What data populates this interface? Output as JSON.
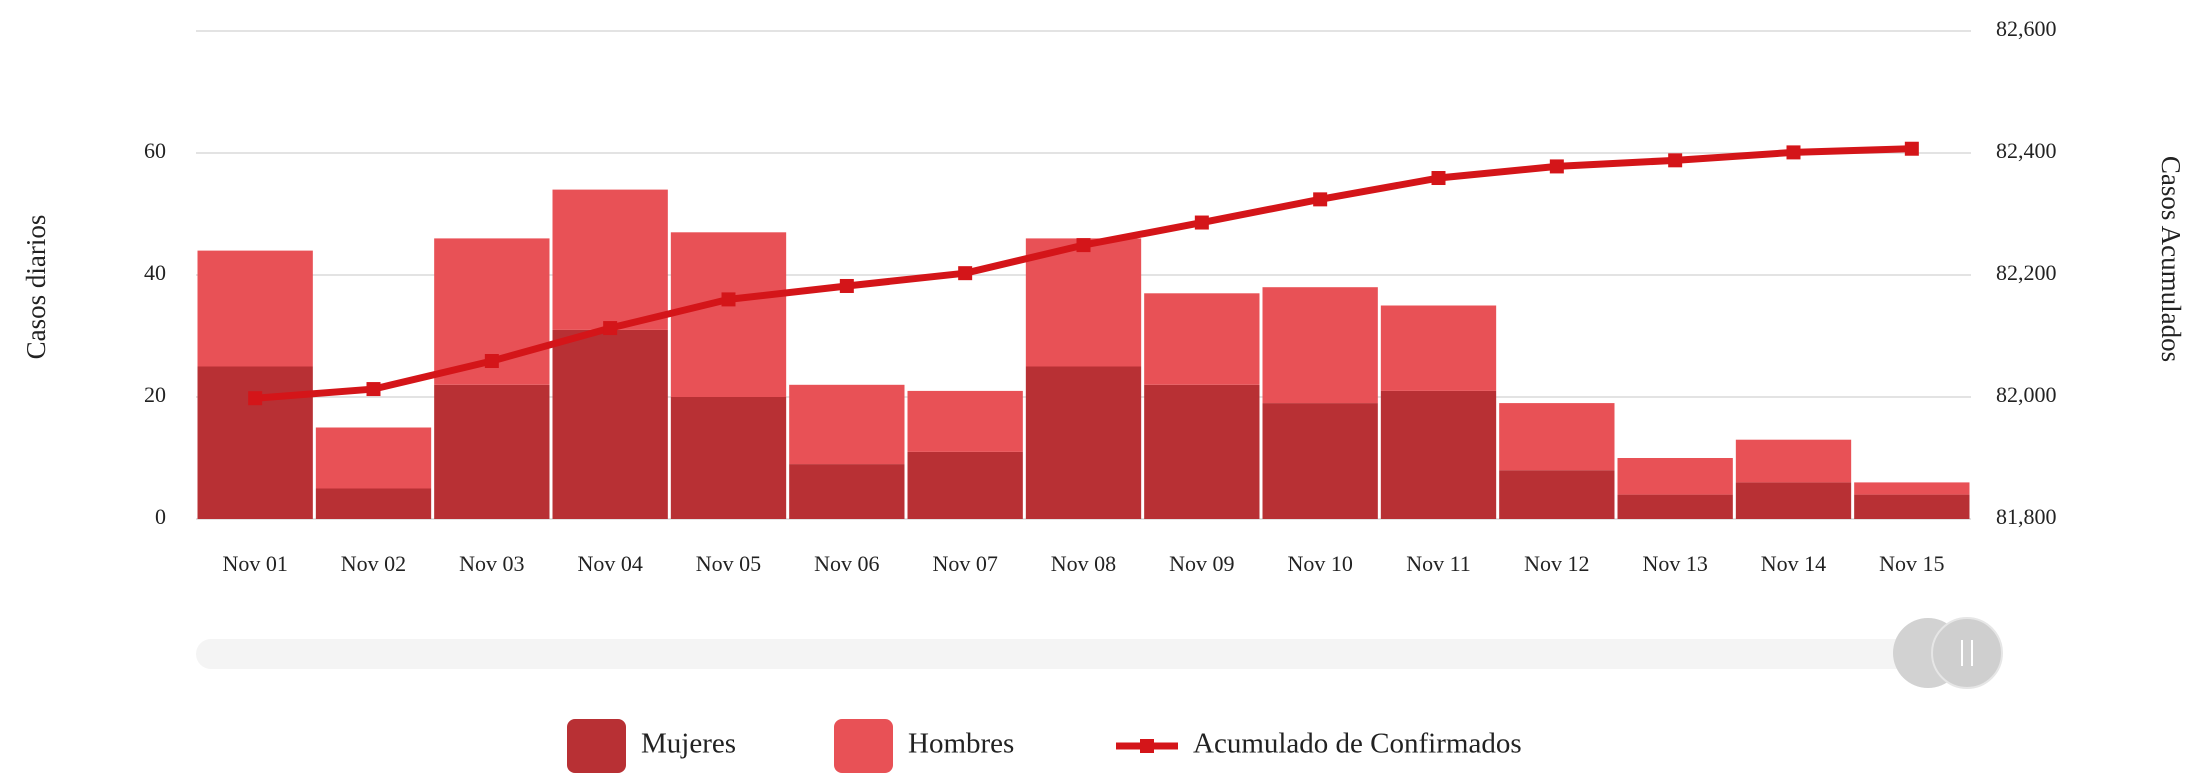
{
  "chart_data": {
    "type": "bar_line",
    "categories": [
      "Nov 01",
      "Nov 02",
      "Nov 03",
      "Nov 04",
      "Nov 05",
      "Nov 06",
      "Nov 07",
      "Nov 08",
      "Nov 09",
      "Nov 10",
      "Nov 11",
      "Nov 12",
      "Nov 13",
      "Nov 14",
      "Nov 15"
    ],
    "series": [
      {
        "name": "Mujeres",
        "type": "bar",
        "color": "#b83034",
        "values": [
          25,
          5,
          22,
          31,
          20,
          9,
          11,
          25,
          22,
          19,
          21,
          8,
          4,
          6,
          4
        ]
      },
      {
        "name": "Hombres",
        "type": "bar",
        "color": "#e85156",
        "values": [
          19,
          10,
          24,
          23,
          27,
          13,
          10,
          21,
          15,
          19,
          14,
          11,
          6,
          7,
          2
        ]
      },
      {
        "name": "Acumulado de Confirmados",
        "type": "line",
        "axis": "y2",
        "color": "#d41519",
        "values": [
          81998,
          82013,
          82059,
          82113,
          82160,
          82182,
          82203,
          82249,
          82286,
          82324,
          82359,
          82378,
          82388,
          82401,
          82407
        ]
      }
    ],
    "stacked": true,
    "ylabel": "Casos diarios",
    "y2label": "Casos Acumulados",
    "ylim": [
      0,
      80
    ],
    "yticks": [
      0,
      20,
      40,
      60
    ],
    "y2lim": [
      81800,
      82600
    ],
    "y2ticks": [
      {
        "value": 81800,
        "label": "81,800"
      },
      {
        "value": 82000,
        "label": "82,000"
      },
      {
        "value": 82200,
        "label": "82,200"
      },
      {
        "value": 82400,
        "label": "82,400"
      },
      {
        "value": 82600,
        "label": "82,600"
      }
    ],
    "grid": true,
    "legend": "bottom"
  }
}
